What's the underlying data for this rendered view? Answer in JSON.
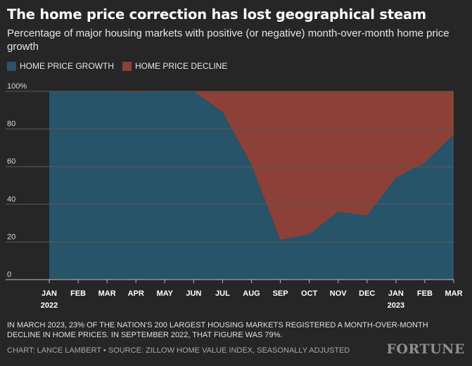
{
  "title": "The home price correction has lost geographical steam",
  "subtitle": "Percentage of major housing markets with positive (or negative) month-over-month home price growth",
  "legend": [
    {
      "label": "HOME PRICE GROWTH",
      "color": "#285469"
    },
    {
      "label": "HOME PRICE DECLINE",
      "color": "#8c4037"
    }
  ],
  "chart_data": {
    "type": "area",
    "stacked": true,
    "categories": [
      "JAN",
      "FEB",
      "MAR",
      "APR",
      "MAY",
      "JUN",
      "JUL",
      "AUG",
      "SEP",
      "OCT",
      "NOV",
      "DEC",
      "JAN",
      "FEB",
      "MAR"
    ],
    "year_labels": [
      "2022",
      "",
      "",
      "",
      "",
      "",
      "",
      "",
      "",
      "",
      "",
      "",
      "2023",
      "",
      ""
    ],
    "series": [
      {
        "name": "HOME PRICE GROWTH",
        "color": "#285469",
        "values": [
          100,
          100,
          100,
          99.5,
          100,
          100,
          89,
          61,
          21,
          24,
          36,
          34,
          54,
          62,
          77
        ]
      },
      {
        "name": "HOME PRICE DECLINE",
        "color": "#8c4037",
        "values": [
          0,
          0,
          0,
          0.5,
          0,
          0,
          11,
          39,
          79,
          76,
          64,
          66,
          46,
          38,
          23
        ]
      }
    ],
    "y_ticks": [
      "100%",
      "80",
      "60",
      "40",
      "20",
      "0"
    ],
    "ylim": [
      0,
      100
    ],
    "grid": true
  },
  "footnote": "IN MARCH 2023, 23% OF THE NATION'S 200 LARGEST HOUSING MARKETS REGISTERED A MONTH-OVER-MONTH DECLINE IN HOME PRICES. IN SEPTEMBER 2022, THAT FIGURE WAS 79%.",
  "source": "CHART: LANCE LAMBERT • SOURCE: ZILLOW HOME VALUE INDEX, SEASONALLY ADJUSTED",
  "brand": "FORTUNE",
  "colors": {
    "background": "#262626",
    "grid": "#5a5a5a",
    "baseline": "#bdbdbd"
  }
}
